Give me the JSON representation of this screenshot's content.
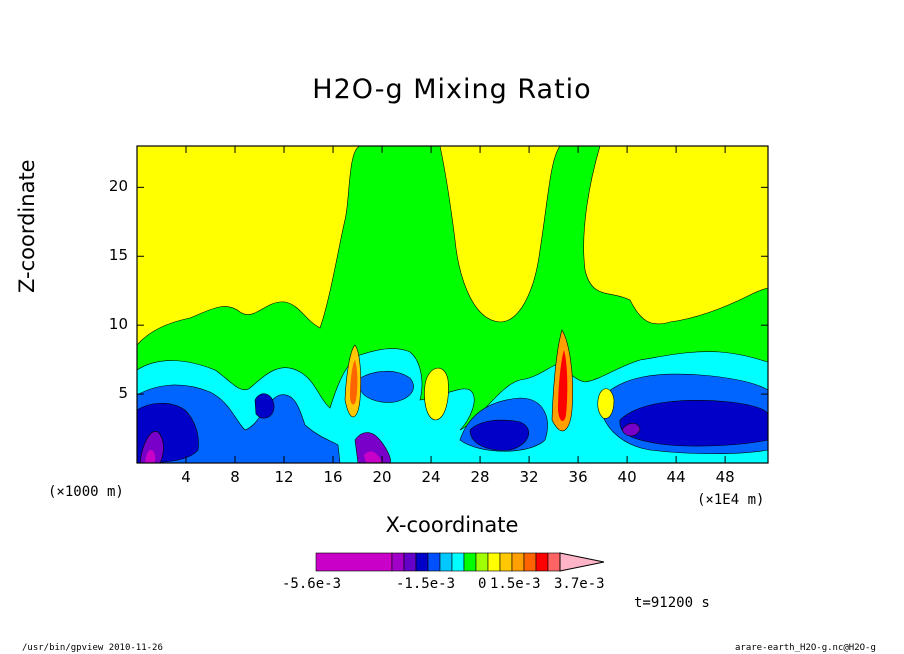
{
  "chart_data": {
    "type": "heatmap",
    "title": "H2O-g Mixing Ratio",
    "xlabel": "X-coordinate",
    "ylabel": "Z-coordinate",
    "x_unit_left": "(×1000 m)",
    "x_unit_right": "(×1E4 m)",
    "xlim": [
      0,
      51.5
    ],
    "ylim": [
      0,
      23
    ],
    "x_ticks": [
      4,
      8,
      12,
      16,
      20,
      24,
      28,
      32,
      36,
      40,
      44,
      48
    ],
    "y_ticks": [
      5,
      10,
      15,
      20
    ],
    "colorbar": {
      "colors": [
        "#c800c8",
        "#a000c8",
        "#6400c8",
        "#0000c8",
        "#0050ff",
        "#00c8ff",
        "#00ffff",
        "#00ff00",
        "#a0ff00",
        "#ffff00",
        "#ffc800",
        "#ffa000",
        "#ff6400",
        "#ff0000",
        "#ff6464",
        "#ffb4c8"
      ],
      "tick_labels": [
        "-5.6e-3",
        "-1.5e-3",
        "0",
        "1.5e-3",
        "3.7e-3"
      ]
    },
    "time_label": "t=91200 s"
  },
  "footer": {
    "left": "/usr/bin/gpview  2010-11-26",
    "right": "arare-earth_H2O-g.nc@H2O-g"
  }
}
